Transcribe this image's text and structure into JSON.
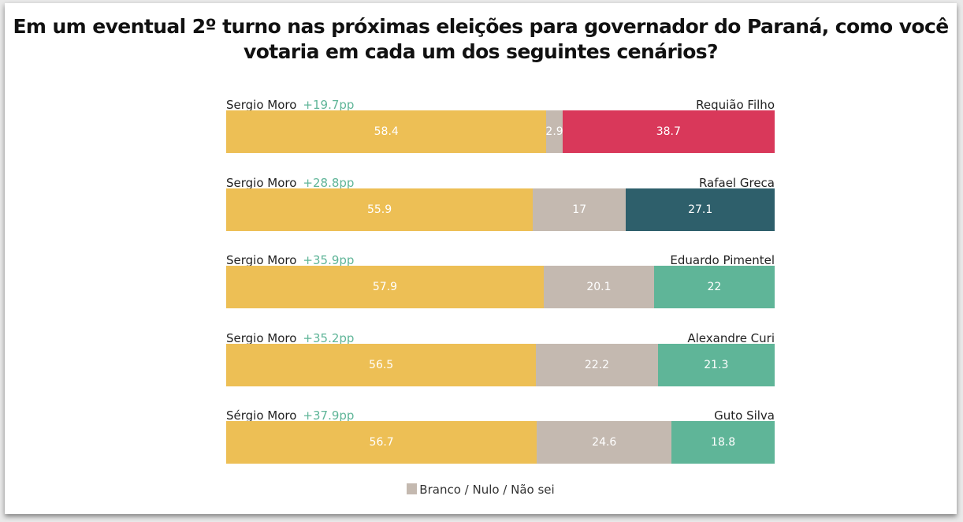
{
  "chart_data": {
    "type": "bar",
    "orientation": "horizontal-stacked-100",
    "title": "Em um eventual 2º turno nas próximas eleições para governador do Paraná, como você votaria em cada um dos seguintes cenários?",
    "legend": {
      "label": "Branco / Nulo / Não sei",
      "color": "#c4b9b0",
      "placement": "bottom"
    },
    "colors": {
      "left": "#edbf55",
      "neutral": "#c4b9b0",
      "lead": "#5fb598"
    },
    "rows": [
      {
        "left_name": "Sergio Moro",
        "lead": "+19.7pp",
        "right_name": "Requião Filho",
        "values": [
          58.4,
          2.9,
          38.7
        ],
        "right_color": "#d9385a"
      },
      {
        "left_name": "Sergio Moro",
        "lead": "+28.8pp",
        "right_name": "Rafael Greca",
        "values": [
          55.9,
          17,
          27.1
        ],
        "right_color": "#2e5f6b"
      },
      {
        "left_name": "Sergio Moro",
        "lead": "+35.9pp",
        "right_name": "Eduardo Pimentel",
        "values": [
          57.9,
          20.1,
          22
        ],
        "right_color": "#5fb598"
      },
      {
        "left_name": "Sergio Moro",
        "lead": "+35.2pp",
        "right_name": "Alexandre Curi",
        "values": [
          56.5,
          22.2,
          21.3
        ],
        "right_color": "#5fb598"
      },
      {
        "left_name": "Sérgio Moro",
        "lead": "+37.9pp",
        "right_name": "Guto Silva",
        "values": [
          56.7,
          24.6,
          18.8
        ],
        "right_color": "#5fb598"
      }
    ]
  }
}
